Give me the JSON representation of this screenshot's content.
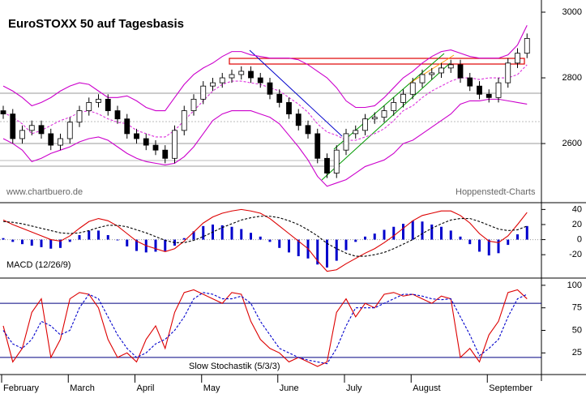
{
  "chart_data": [
    {
      "type": "candlestick",
      "title": "EuroSTOXX 50 auf Tagesbasis",
      "annotations": [
        "www.chartbuero.de",
        "Hoppenstedt-Charts"
      ],
      "categories": [
        "February",
        null,
        null,
        null,
        null,
        null,
        null,
        "March",
        null,
        null,
        null,
        null,
        null,
        null,
        "April",
        null,
        null,
        null,
        null,
        null,
        null,
        "May",
        null,
        null,
        null,
        null,
        null,
        null,
        null,
        "June",
        null,
        null,
        null,
        null,
        null,
        null,
        "July",
        null,
        null,
        null,
        null,
        null,
        null,
        "August",
        null,
        null,
        null,
        null,
        null,
        null,
        null,
        "September",
        null,
        null,
        null,
        null
      ],
      "open": [
        2700,
        2690,
        2615,
        2640,
        2655,
        2630,
        2595,
        2615,
        2665,
        2700,
        2725,
        2735,
        2700,
        2675,
        2630,
        2615,
        2595,
        2580,
        2555,
        2640,
        2700,
        2735,
        2775,
        2785,
        2800,
        2810,
        2820,
        2800,
        2785,
        2750,
        2725,
        2690,
        2655,
        2630,
        2555,
        2510,
        2580,
        2630,
        2640,
        2675,
        2680,
        2700,
        2725,
        2750,
        2785,
        2810,
        2815,
        2830,
        2840,
        2800,
        2775,
        2750,
        2740,
        2785,
        2845,
        2875
      ],
      "high": [
        2715,
        2705,
        2655,
        2670,
        2670,
        2645,
        2630,
        2680,
        2715,
        2740,
        2750,
        2750,
        2715,
        2690,
        2645,
        2630,
        2610,
        2595,
        2655,
        2715,
        2750,
        2790,
        2800,
        2815,
        2825,
        2835,
        2835,
        2815,
        2800,
        2765,
        2740,
        2705,
        2670,
        2645,
        2570,
        2595,
        2645,
        2655,
        2690,
        2695,
        2715,
        2740,
        2765,
        2800,
        2825,
        2830,
        2845,
        2855,
        2855,
        2815,
        2790,
        2765,
        2800,
        2860,
        2890,
        2935
      ],
      "low": [
        2675,
        2600,
        2600,
        2625,
        2615,
        2580,
        2580,
        2600,
        2650,
        2685,
        2710,
        2685,
        2660,
        2615,
        2600,
        2580,
        2565,
        2540,
        2540,
        2625,
        2685,
        2720,
        2760,
        2770,
        2785,
        2795,
        2785,
        2770,
        2735,
        2710,
        2675,
        2640,
        2615,
        2540,
        2495,
        2495,
        2565,
        2615,
        2625,
        2660,
        2665,
        2685,
        2710,
        2735,
        2770,
        2795,
        2800,
        2815,
        2785,
        2760,
        2735,
        2725,
        2725,
        2770,
        2830,
        2860
      ],
      "close": [
        2690,
        2615,
        2640,
        2655,
        2630,
        2595,
        2615,
        2665,
        2700,
        2725,
        2735,
        2700,
        2675,
        2630,
        2615,
        2595,
        2580,
        2555,
        2640,
        2700,
        2735,
        2775,
        2785,
        2800,
        2810,
        2820,
        2800,
        2785,
        2750,
        2725,
        2690,
        2655,
        2630,
        2555,
        2510,
        2580,
        2630,
        2640,
        2675,
        2680,
        2700,
        2725,
        2750,
        2785,
        2810,
        2815,
        2830,
        2840,
        2800,
        2775,
        2750,
        2740,
        2785,
        2845,
        2875,
        2920
      ],
      "up_color": "#ffffff",
      "down_color": "#000000",
      "series": [
        {
          "color": "#cc00cc",
          "dashed": false,
          "values": [
            2775,
            2760,
            2740,
            2715,
            2725,
            2740,
            2760,
            2775,
            2785,
            2780,
            2760,
            2740,
            2740,
            2745,
            2730,
            2710,
            2700,
            2700,
            2740,
            2780,
            2810,
            2830,
            2845,
            2865,
            2880,
            2880,
            2870,
            2865,
            2860,
            2860,
            2860,
            2855,
            2840,
            2820,
            2800,
            2770,
            2730,
            2710,
            2710,
            2715,
            2740,
            2770,
            2800,
            2820,
            2845,
            2865,
            2880,
            2885,
            2875,
            2865,
            2860,
            2860,
            2860,
            2870,
            2900,
            2960
          ]
        },
        {
          "color": "#cc00cc",
          "dashed": false,
          "values": [
            2615,
            2600,
            2580,
            2545,
            2555,
            2570,
            2580,
            2590,
            2605,
            2615,
            2620,
            2610,
            2590,
            2570,
            2555,
            2545,
            2540,
            2535,
            2540,
            2560,
            2590,
            2630,
            2670,
            2690,
            2700,
            2700,
            2700,
            2690,
            2680,
            2660,
            2625,
            2590,
            2550,
            2500,
            2470,
            2480,
            2490,
            2510,
            2530,
            2540,
            2550,
            2570,
            2600,
            2610,
            2630,
            2650,
            2670,
            2690,
            2720,
            2730,
            2730,
            2735,
            2735,
            2730,
            2725,
            2720
          ]
        },
        {
          "color": "#dd33dd",
          "dashed": true,
          "values": [
            2695,
            2680,
            2660,
            2630,
            2640,
            2655,
            2670,
            2680,
            2695,
            2700,
            2690,
            2675,
            2665,
            2660,
            2640,
            2630,
            2620,
            2620,
            2640,
            2670,
            2700,
            2730,
            2760,
            2780,
            2790,
            2790,
            2785,
            2780,
            2770,
            2760,
            2740,
            2720,
            2695,
            2660,
            2635,
            2625,
            2610,
            2610,
            2620,
            2630,
            2645,
            2670,
            2700,
            2715,
            2740,
            2760,
            2775,
            2790,
            2800,
            2800,
            2795,
            2800,
            2800,
            2800,
            2810,
            2840
          ]
        }
      ],
      "ylim": [
        2420,
        3037
      ],
      "yticks": [
        2600,
        2800,
        3000
      ]
    },
    {
      "type": "line",
      "title": "MACD (12/26/9)",
      "series": [
        {
          "type": "bar",
          "color": "#0000cc",
          "values": [
            2,
            -3,
            -6,
            -8,
            -10,
            -12,
            -11,
            -3,
            6,
            12,
            12,
            6,
            -1,
            -9,
            -15,
            -17,
            -16,
            -15,
            -8,
            2,
            11,
            18,
            20,
            19,
            17,
            14,
            9,
            4,
            -3,
            -11,
            -17,
            -22,
            -25,
            -33,
            -37,
            -28,
            -14,
            -3,
            4,
            8,
            13,
            17,
            21,
            25,
            24,
            20,
            17,
            12,
            4,
            -6,
            -16,
            -21,
            -18,
            -7,
            7,
            18
          ]
        },
        {
          "type": "line",
          "color": "#dd0000",
          "dashed": false,
          "values": [
            26,
            20,
            15,
            10,
            5,
            0,
            -2,
            5,
            15,
            24,
            28,
            25,
            18,
            8,
            -2,
            -8,
            -12,
            -16,
            -12,
            -2,
            10,
            22,
            30,
            35,
            38,
            40,
            38,
            35,
            28,
            18,
            8,
            -2,
            -12,
            -28,
            -42,
            -40,
            -32,
            -25,
            -18,
            -12,
            -4,
            5,
            15,
            25,
            32,
            35,
            38,
            38,
            32,
            22,
            8,
            -2,
            -4,
            5,
            20,
            36
          ]
        },
        {
          "type": "line",
          "color": "#000000",
          "dashed": true,
          "values": [
            24,
            23,
            21,
            18,
            15,
            12,
            9,
            8,
            9,
            12,
            16,
            19,
            19,
            17,
            13,
            9,
            4,
            -1,
            -4,
            -4,
            -1,
            4,
            10,
            16,
            21,
            26,
            29,
            31,
            31,
            29,
            25,
            20,
            13,
            5,
            -5,
            -12,
            -18,
            -22,
            -22,
            -20,
            -17,
            -12,
            -6,
            0,
            8,
            15,
            21,
            26,
            28,
            28,
            24,
            19,
            14,
            12,
            13,
            18
          ]
        }
      ],
      "reference_lines": [
        0
      ],
      "reference_color": "#999999",
      "ylim": [
        -51,
        49
      ],
      "yticks": [
        40,
        20,
        0,
        -20
      ]
    },
    {
      "type": "line",
      "title": "Slow Stochastik (5/3/3)",
      "series": [
        {
          "type": "line",
          "color": "#dd0000",
          "dashed": false,
          "values": [
            55,
            15,
            30,
            70,
            85,
            20,
            40,
            85,
            92,
            90,
            75,
            40,
            20,
            25,
            15,
            40,
            55,
            30,
            70,
            92,
            95,
            90,
            85,
            80,
            92,
            90,
            60,
            40,
            30,
            25,
            15,
            20,
            15,
            10,
            15,
            70,
            85,
            65,
            80,
            75,
            90,
            92,
            88,
            90,
            85,
            80,
            88,
            85,
            20,
            30,
            15,
            45,
            60,
            92,
            95,
            85
          ]
        },
        {
          "type": "line",
          "color": "#0000cc",
          "dashed": true,
          "values": [
            50,
            35,
            30,
            40,
            60,
            55,
            45,
            50,
            75,
            90,
            85,
            65,
            45,
            30,
            20,
            25,
            35,
            40,
            50,
            65,
            85,
            92,
            90,
            85,
            85,
            88,
            80,
            60,
            45,
            30,
            25,
            20,
            17,
            15,
            13,
            30,
            55,
            75,
            75,
            75,
            80,
            85,
            90,
            90,
            88,
            85,
            84,
            85,
            65,
            45,
            22,
            30,
            40,
            65,
            85,
            90
          ]
        }
      ],
      "reference_lines": [
        20,
        80
      ],
      "reference_color": "#000080",
      "ylim": [
        1,
        108
      ],
      "yticks": [
        100,
        75,
        50,
        25
      ]
    }
  ]
}
